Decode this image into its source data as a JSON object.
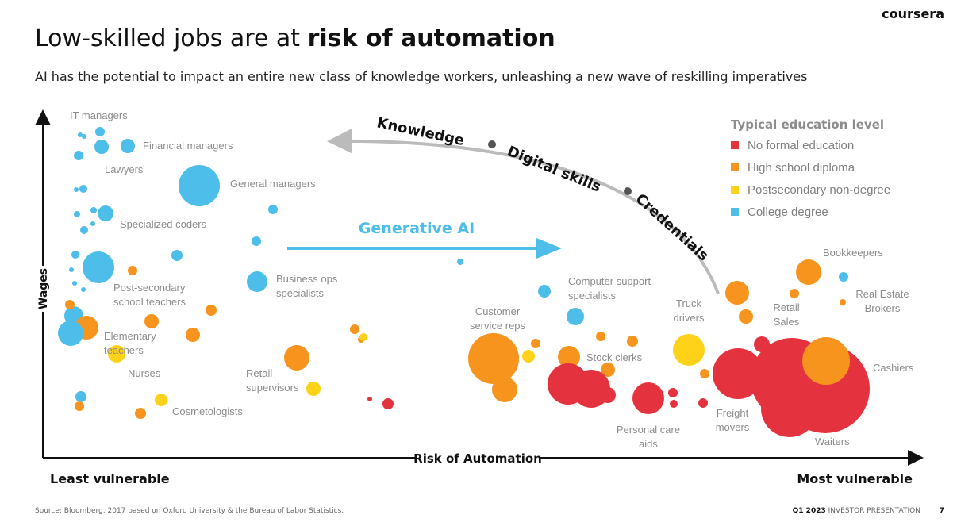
{
  "header": {
    "brand": "coursera",
    "title_plain": "Low-skilled jobs are at ",
    "title_bold": "risk of automation",
    "subtitle": "AI has the potential to impact an entire new class of knowledge workers, unleashing a new wave of reskilling imperatives"
  },
  "chart": {
    "y_axis": "Wages",
    "x_axis": "Risk of Automation",
    "left_end": "Least vulnerable",
    "right_end": "Most vulnerable",
    "arrow_labels": [
      "Knowledge",
      "Digital skills",
      "Credentials"
    ],
    "generative": "Generative AI",
    "legend": {
      "title": "Typical education level",
      "items": [
        {
          "label": "No formal education",
          "color": "#e5323f"
        },
        {
          "label": "High school diploma",
          "color": "#f7941d"
        },
        {
          "label": "Postsecondary non-degree",
          "color": "#ffd21a"
        },
        {
          "label": "College degree",
          "color": "#4dbde9"
        }
      ]
    },
    "jobs": [
      [
        "IT managers"
      ],
      [
        "Financial managers"
      ],
      [
        "Lawyers"
      ],
      [
        "General managers"
      ],
      [
        "Specialized coders"
      ],
      [
        "Post-secondary",
        "school teachers"
      ],
      [
        "Business ops",
        "specialists"
      ],
      [
        "Elementary",
        "teachers"
      ],
      [
        "Nurses"
      ],
      [
        "Retail",
        "supervisors"
      ],
      [
        "Cosmetologists"
      ],
      [
        "Customer",
        "service reps"
      ],
      [
        "Computer support",
        "specialists"
      ],
      [
        "Stock clerks"
      ],
      [
        "Truck",
        "drivers"
      ],
      [
        "Personal care",
        "aids"
      ],
      [
        "Freight",
        "movers"
      ],
      [
        "Bookkeepers"
      ],
      [
        "Retail",
        "Sales"
      ],
      [
        "Real Estate",
        "Brokers"
      ],
      [
        "Cashiers"
      ],
      [
        "Waiters"
      ]
    ]
  },
  "footer": {
    "source": "Source: Bloomberg, 2017 based on Oxford University & the Bureau of Labor Statistics.",
    "quarter": "Q1 2023",
    "presentation": "INVESTOR PRESENTATION",
    "page": "7"
  }
}
